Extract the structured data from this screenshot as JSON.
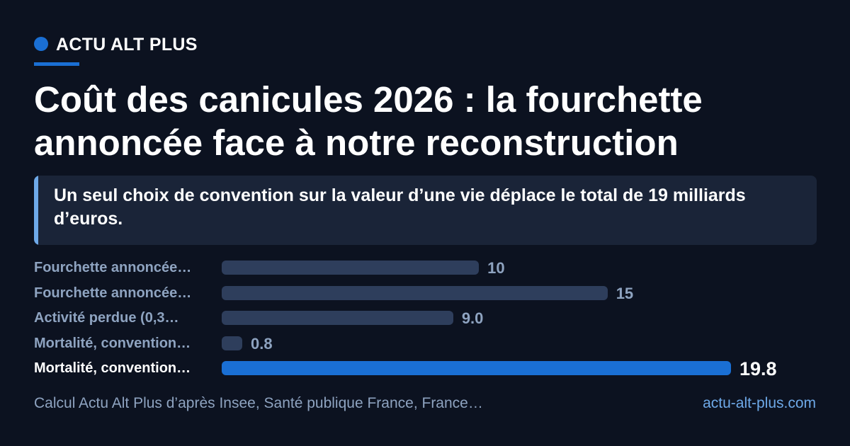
{
  "brand": {
    "name": "ACTU ALT PLUS",
    "accent_color": "#1a6fd4"
  },
  "headline": {
    "title": "Coût des canicules 2026 : la fourchette annoncée face à notre reconstruction",
    "subtitle": "Un seul choix de convention sur la valeur d’une vie déplace le total de 19 milliards d’euros."
  },
  "chart_data": {
    "type": "bar",
    "orientation": "horizontal",
    "categories": [
      "Fourchette annoncée…",
      "Fourchette annoncée…",
      "Activité perdue (0,3…",
      "Mortalité, convention…",
      "Mortalité, convention…"
    ],
    "values": [
      10,
      15,
      9.0,
      0.8,
      19.8
    ],
    "value_labels": [
      "10",
      "15",
      "9.0",
      "0.8",
      "19.8"
    ],
    "highlighted_index": 4,
    "xlim": [
      0,
      19.8
    ],
    "grid": false,
    "bar_color": "#2e3e5c",
    "highlight_color": "#1a6fd4"
  },
  "footer": {
    "source": "Calcul Actu Alt Plus d’après Insee, Santé publique France, France…",
    "site": "actu-alt-plus.com"
  }
}
